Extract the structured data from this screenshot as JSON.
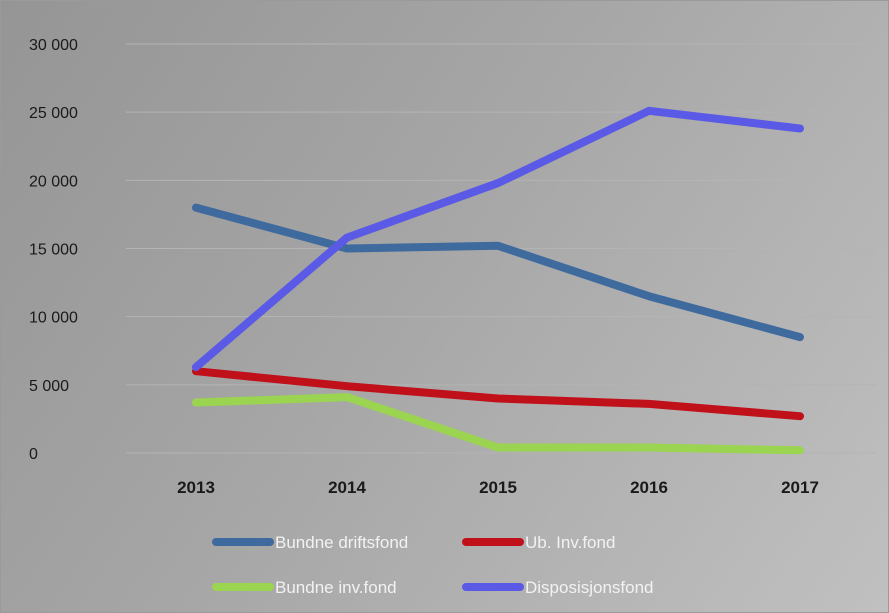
{
  "chart_data": {
    "type": "line",
    "title": "",
    "xlabel": "",
    "ylabel": "",
    "categories": [
      "2013",
      "2014",
      "2015",
      "2016",
      "2017"
    ],
    "ylim": [
      0,
      30000
    ],
    "yticks": [
      0,
      5000,
      10000,
      15000,
      20000,
      25000,
      30000
    ],
    "ytick_labels": [
      "0",
      "5 000",
      "10 000",
      "15 000",
      "20 000",
      "25 000",
      "30 000"
    ],
    "grid": true,
    "legend_position": "bottom",
    "series": [
      {
        "name": "Bundne driftsfond",
        "color": "#3e6a9e",
        "values": [
          18000,
          15000,
          15200,
          11500,
          8500
        ]
      },
      {
        "name": "Ub. Inv.fond",
        "color": "#c0101a",
        "values": [
          6000,
          4900,
          4000,
          3600,
          2700
        ]
      },
      {
        "name": "Bundne inv.fond",
        "color": "#9bd450",
        "values": [
          3700,
          4100,
          400,
          400,
          200
        ]
      },
      {
        "name": "Disposisjonsfond",
        "color": "#5a5ae6",
        "values": [
          6300,
          15800,
          19800,
          25100,
          23800
        ]
      }
    ]
  }
}
